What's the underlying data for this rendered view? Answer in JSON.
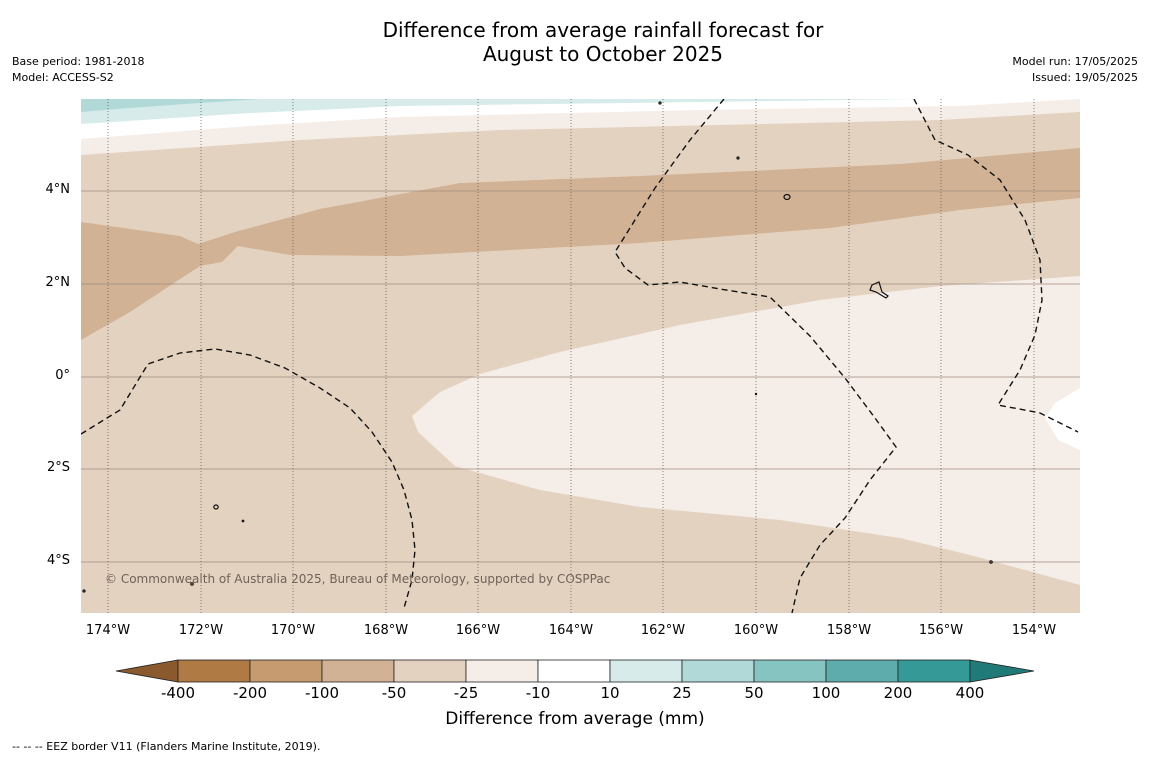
{
  "title": {
    "line1": "Difference from average rainfall forecast for",
    "line2": "August to October 2025"
  },
  "meta_left": {
    "base_period": "Base period: 1981-2018",
    "model": "Model: ACCESS-S2"
  },
  "meta_right": {
    "model_run": "Model run: 17/05/2025",
    "issued": "Issued: 19/05/2025"
  },
  "map": {
    "lat_labels": [
      "4°N",
      "2°N",
      "0°",
      "2°S",
      "4°S"
    ],
    "lon_labels": [
      "174°W",
      "172°W",
      "170°W",
      "168°W",
      "166°W",
      "164°W",
      "162°W",
      "160°W",
      "158°W",
      "156°W",
      "154°W"
    ],
    "copyright": "© Commonwealth of Australia 2025, Bureau of Meteorology, supported by COSPPac",
    "anomaly_class_colors": {
      "-100 to -50": "#d2b294",
      "-50 to -25": "#e4d2c1",
      "-25 to -10": "#f5ede8",
      "-10 to 10": "#ffffff",
      "10 to 25": "#d6ebea",
      "25 to 50": "#b0d9d8"
    }
  },
  "colorbar": {
    "title": "Difference from average (mm)",
    "tick_labels": [
      "-400",
      "-200",
      "-100",
      "-50",
      "-25",
      "-10",
      "10",
      "25",
      "50",
      "100",
      "200",
      "400"
    ],
    "colors": {
      "below_min": "#8a5a2e",
      "-400 to -200": "#b07a45",
      "-200 to -100": "#c69b70",
      "-100 to -50": "#d2b294",
      "-50 to -25": "#e4d2c1",
      "-25 to -10": "#f5ede8",
      "-10 to 10": "#ffffff",
      "10 to 25": "#d6ebea",
      "25 to 50": "#b0d9d8",
      "50 to 100": "#86c4c2",
      "100 to 200": "#5eacab",
      "200 to 400": "#359a97",
      "above_max": "#207a78"
    }
  },
  "footer": "--  --  -- EEZ border V11 (Flanders Marine Institute, 2019)."
}
